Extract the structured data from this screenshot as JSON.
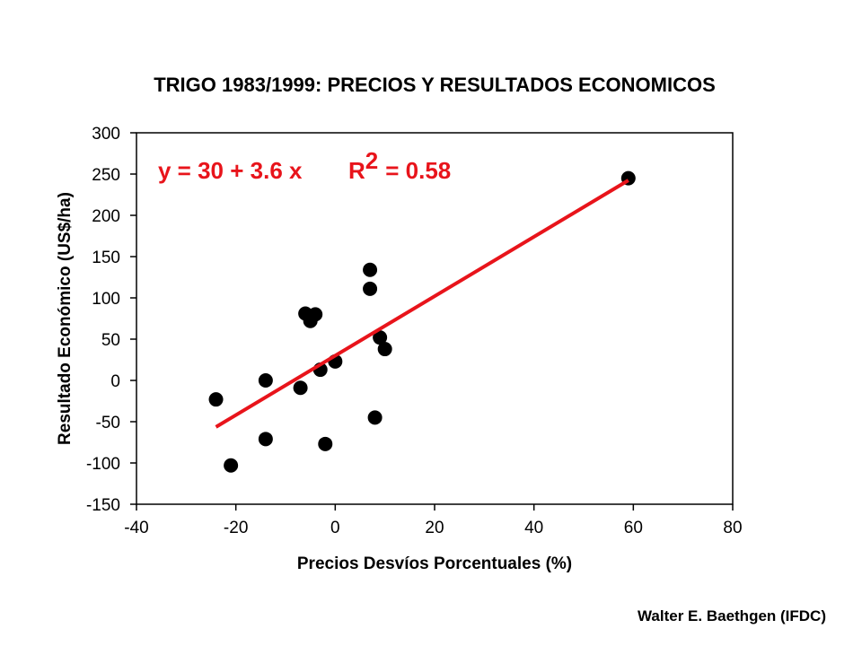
{
  "chart_data": {
    "type": "scatter",
    "title": "TRIGO 1983/1999:  PRECIOS  Y  RESULTADOS ECONOMICOS",
    "xlabel": "Precios Desvíos Porcentuales (%)",
    "ylabel": "Resultado Económico (US$/ha)",
    "xlim": [
      -40,
      80
    ],
    "ylim": [
      -150,
      300
    ],
    "xticks": [
      -40,
      -20,
      0,
      20,
      40,
      60,
      80
    ],
    "yticks": [
      -150,
      -100,
      -50,
      0,
      50,
      100,
      150,
      200,
      250,
      300
    ],
    "grid": false,
    "legend": "none",
    "points": [
      {
        "x": -24,
        "y": -23
      },
      {
        "x": -21,
        "y": -103
      },
      {
        "x": -14,
        "y": 0
      },
      {
        "x": -14,
        "y": -71
      },
      {
        "x": -7,
        "y": -9
      },
      {
        "x": -6,
        "y": 81
      },
      {
        "x": -5,
        "y": 72
      },
      {
        "x": -4,
        "y": 80
      },
      {
        "x": -3,
        "y": 13
      },
      {
        "x": -2,
        "y": -77
      },
      {
        "x": 0,
        "y": 23
      },
      {
        "x": 7,
        "y": 134
      },
      {
        "x": 7,
        "y": 111
      },
      {
        "x": 8,
        "y": -45
      },
      {
        "x": 9,
        "y": 52
      },
      {
        "x": 10,
        "y": 38
      },
      {
        "x": 59,
        "y": 245
      }
    ],
    "trendline": {
      "intercept": 30,
      "slope": 3.6,
      "x_range": [
        -24,
        59
      ],
      "color": "#e8141b"
    },
    "point_color": "#000000",
    "equation": {
      "prefix": "y = 30 +  3.6 x",
      "r_letter": "R",
      "r_exp": "2",
      "r_value": "=  0.58",
      "color": "#e8141b"
    }
  },
  "credit": "Walter E.  Baethgen (IFDC)"
}
